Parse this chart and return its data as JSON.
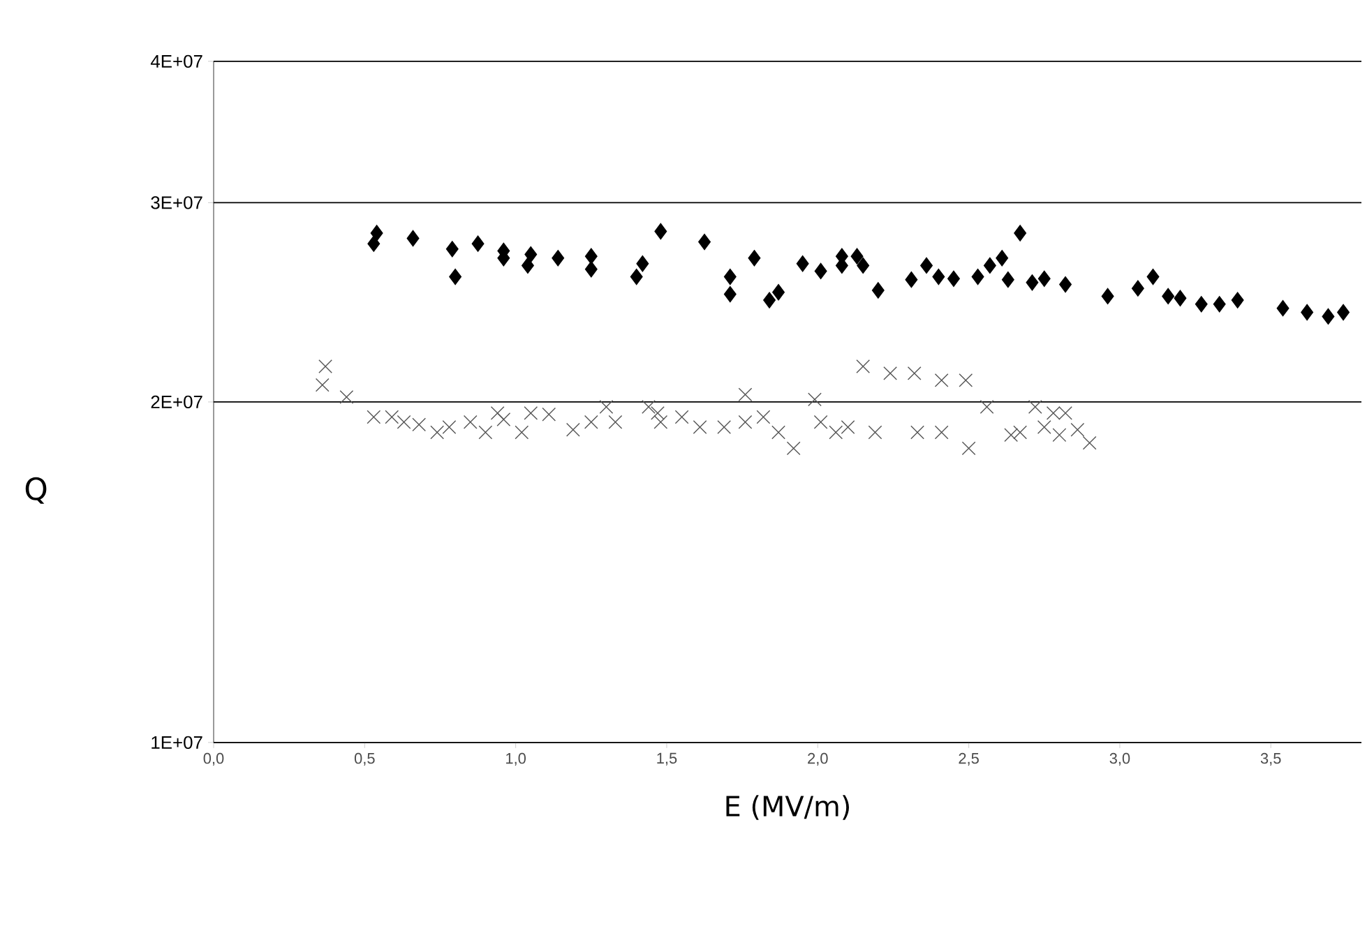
{
  "chart_data": {
    "type": "scatter",
    "xlabel": "E (MV/m)",
    "ylabel": "Q",
    "log": "y",
    "grid": "y",
    "xlim": [
      0,
      3.8
    ],
    "ylim": [
      10000000,
      40000000
    ],
    "xticks": [
      {
        "value": 0,
        "label": "0,0"
      },
      {
        "value": 0.5,
        "label": "0,5"
      },
      {
        "value": 1,
        "label": "1,0"
      },
      {
        "value": 1.5,
        "label": "1,5"
      },
      {
        "value": 2,
        "label": "2,0"
      },
      {
        "value": 2.5,
        "label": "2,5"
      },
      {
        "value": 3,
        "label": "3,0"
      },
      {
        "value": 3.5,
        "label": "3,5"
      }
    ],
    "yticks": [
      {
        "value": 10000000,
        "label": "1E+07"
      },
      {
        "value": 20000000,
        "label": "2E+07"
      },
      {
        "value": 30000000,
        "label": "3E+07"
      },
      {
        "value": 40000000,
        "label": "4E+07"
      }
    ],
    "series": [
      {
        "color": "#000000",
        "marker": "diamond",
        "x": [
          0.53,
          0.54,
          0.66,
          0.79,
          0.8,
          0.875,
          0.96,
          0.96,
          1.05,
          1.04,
          1.14,
          1.25,
          1.25,
          1.42,
          1.4,
          1.48,
          1.625,
          1.71,
          1.71,
          1.79,
          1.84,
          1.87,
          1.95,
          2.01,
          2.08,
          2.08,
          2.13,
          2.15,
          2.2,
          2.31,
          2.36,
          2.4,
          2.45,
          2.53,
          2.57,
          2.61,
          2.63,
          2.67,
          2.71,
          2.75,
          2.82,
          2.96,
          3.06,
          3.11,
          3.16,
          3.2,
          3.27,
          3.33,
          3.39,
          3.54,
          3.62,
          3.69,
          3.74
        ],
        "values": [
          27600000,
          28200000,
          27900000,
          27300000,
          25800000,
          27600000,
          27200000,
          26800000,
          27000000,
          26400000,
          26800000,
          26900000,
          26200000,
          26500000,
          25800000,
          28300000,
          27700000,
          25800000,
          24900000,
          26800000,
          24600000,
          25000000,
          26500000,
          26100000,
          26900000,
          26400000,
          26900000,
          26400000,
          25100000,
          25650000,
          26400000,
          25800000,
          25700000,
          25800000,
          26400000,
          26800000,
          25650000,
          28200000,
          25500000,
          25700000,
          25400000,
          24800000,
          25200000,
          25800000,
          24800000,
          24700000,
          24400000,
          24400000,
          24600000,
          24200000,
          24000000,
          23800000,
          24000000
        ]
      },
      {
        "color": "#555555",
        "marker": "cross",
        "x": [
          0.37,
          0.36,
          0.44,
          0.53,
          0.59,
          0.63,
          0.68,
          0.74,
          0.78,
          0.85,
          0.9,
          0.94,
          0.96,
          1.02,
          1.05,
          1.11,
          1.19,
          1.25,
          1.3,
          1.33,
          1.44,
          1.48,
          1.47,
          1.55,
          1.61,
          1.69,
          1.76,
          1.76,
          1.82,
          1.87,
          1.92,
          1.99,
          2.01,
          2.06,
          2.1,
          2.15,
          2.19,
          2.24,
          2.32,
          2.33,
          2.41,
          2.41,
          2.49,
          2.5,
          2.56,
          2.64,
          2.72,
          2.67,
          2.75,
          2.78,
          2.8,
          2.82,
          2.86,
          2.9
        ],
        "values": [
          21500000,
          20700000,
          20200000,
          19400000,
          19400000,
          19200000,
          19100000,
          18800000,
          19000000,
          19200000,
          18800000,
          19550000,
          19300000,
          18800000,
          19550000,
          19500000,
          18900000,
          19200000,
          19800000,
          19200000,
          19800000,
          19200000,
          19550000,
          19400000,
          19000000,
          19000000,
          20300000,
          19200000,
          19400000,
          18800000,
          18200000,
          20100000,
          19200000,
          18800000,
          19000000,
          21500000,
          18800000,
          21200000,
          21200000,
          18800000,
          20900000,
          18800000,
          20900000,
          18200000,
          19800000,
          18700000,
          19800000,
          18800000,
          19000000,
          19550000,
          18700000,
          19550000,
          18900000,
          18400000
        ]
      }
    ]
  }
}
